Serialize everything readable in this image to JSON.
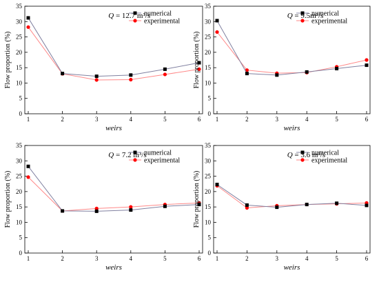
{
  "chart_data": [
    {
      "type": "line",
      "q_label": {
        "sym": "Q",
        "rest": " = 12.7 m³/s"
      },
      "categories": [
        "1",
        "2",
        "3",
        "4",
        "5",
        "6"
      ],
      "xlabel": "weirs",
      "ylabel": "Flow proportion (%)",
      "ylim": [
        0,
        35
      ],
      "yticks": [
        "0",
        "5",
        "10",
        "15",
        "20",
        "25",
        "30",
        "35"
      ],
      "legend": "top-right",
      "series": [
        {
          "name": "numerical",
          "color": "#000000",
          "marker": "square",
          "line_color": "#8080a0",
          "values": [
            31.2,
            13.1,
            12.2,
            12.6,
            14.5,
            16.6
          ]
        },
        {
          "name": "experimental",
          "color": "#ff0000",
          "marker": "circle",
          "line_color": "#ff8888",
          "values": [
            28.2,
            13.0,
            11.0,
            11.1,
            12.8,
            14.5
          ]
        }
      ]
    },
    {
      "type": "line",
      "q_label": {
        "sym": "Q",
        "rest": " = 9.5m³/s"
      },
      "categories": [
        "1",
        "2",
        "3",
        "4",
        "5",
        "6"
      ],
      "xlabel": "weirs",
      "ylabel": "Flow proportion (%)",
      "ylim": [
        0,
        35
      ],
      "yticks": [
        "0",
        "5",
        "10",
        "15",
        "20",
        "25",
        "30",
        "35"
      ],
      "legend": "top-right",
      "series": [
        {
          "name": "numerical",
          "color": "#000000",
          "marker": "square",
          "line_color": "#8080a0",
          "values": [
            30.3,
            13.1,
            12.6,
            13.6,
            14.7,
            15.8
          ]
        },
        {
          "name": "experimental",
          "color": "#ff0000",
          "marker": "circle",
          "line_color": "#ff8888",
          "values": [
            26.6,
            14.2,
            13.2,
            13.4,
            15.3,
            17.5
          ]
        }
      ]
    },
    {
      "type": "line",
      "q_label": {
        "sym": "Q",
        "rest": " = 7.2 m³/s"
      },
      "categories": [
        "1",
        "2",
        "3",
        "4",
        "5",
        "6"
      ],
      "xlabel": "weirs",
      "ylabel": "Flow proportion (%)",
      "ylim": [
        0,
        35
      ],
      "yticks": [
        "0",
        "5",
        "10",
        "15",
        "20",
        "25",
        "30",
        "35"
      ],
      "legend": "top-right",
      "series": [
        {
          "name": "numerical",
          "color": "#000000",
          "marker": "square",
          "line_color": "#8080a0",
          "values": [
            28.2,
            13.7,
            13.6,
            14.0,
            15.2,
            15.8
          ]
        },
        {
          "name": "experimental",
          "color": "#ff0000",
          "marker": "circle",
          "line_color": "#ff8888",
          "values": [
            24.7,
            13.7,
            14.5,
            15.0,
            15.8,
            16.3
          ]
        }
      ]
    },
    {
      "type": "line",
      "q_label": {
        "sym": "Q",
        "rest": " = 3.6 m³/s"
      },
      "categories": [
        "1",
        "2",
        "3",
        "4",
        "5",
        "6"
      ],
      "xlabel": "weirs",
      "ylabel": "Flow proportion (%)",
      "ylim": [
        0,
        35
      ],
      "yticks": [
        "0",
        "5",
        "10",
        "15",
        "20",
        "25",
        "30",
        "35"
      ],
      "legend": "top-right",
      "series": [
        {
          "name": "numerical",
          "color": "#000000",
          "marker": "square",
          "line_color": "#8080a0",
          "values": [
            22.3,
            15.6,
            14.9,
            15.8,
            16.2,
            15.5
          ]
        },
        {
          "name": "experimental",
          "color": "#ff0000",
          "marker": "circle",
          "line_color": "#ff8888",
          "values": [
            21.9,
            14.7,
            15.4,
            15.8,
            16.0,
            16.3
          ]
        }
      ]
    }
  ]
}
